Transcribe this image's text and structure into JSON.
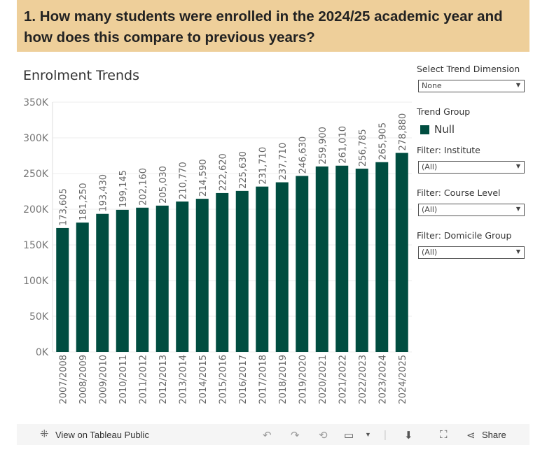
{
  "question": "1. How many students were enrolled in the 2024/25 academic year and how does this compare to previous years?",
  "controls": {
    "trend_dimension_label": "Select Trend Dimension",
    "trend_dimension_value": "None",
    "trend_group_label": "Trend Group",
    "legend_item": "Null",
    "institute_label": "Filter: Institute",
    "institute_value": "(All)",
    "course_level_label": "Filter: Course Level",
    "course_level_value": "(All)",
    "domicile_label": "Filter: Domicile Group",
    "domicile_value": "(All)"
  },
  "toolbar": {
    "view_label": "View on Tableau Public",
    "share_label": "Share"
  },
  "colors": {
    "bar": "#004d40",
    "banner": "#eecf9a"
  },
  "chart_data": {
    "type": "bar",
    "title": "Enrolment Trends",
    "xlabel": "",
    "ylabel": "",
    "ylim": [
      0,
      350000
    ],
    "yticks": [
      0,
      50000,
      100000,
      150000,
      200000,
      250000,
      300000,
      350000
    ],
    "ytick_labels": [
      "0K",
      "50K",
      "100K",
      "150K",
      "200K",
      "250K",
      "300K",
      "350K"
    ],
    "categories": [
      "2007/2008",
      "2008/2009",
      "2009/2010",
      "2010/2011",
      "2011/2012",
      "2012/2013",
      "2013/2014",
      "2014/2015",
      "2015/2016",
      "2016/2017",
      "2017/2018",
      "2018/2019",
      "2019/2020",
      "2020/2021",
      "2021/2022",
      "2022/2023",
      "2023/2024",
      "2024/2025"
    ],
    "values": [
      173605,
      181250,
      193430,
      199145,
      202160,
      205030,
      210770,
      214590,
      222620,
      225630,
      231710,
      237710,
      246630,
      259900,
      261010,
      256785,
      265905,
      278880
    ],
    "data_labels": [
      "173,605",
      "181,250",
      "193,430",
      "199,145",
      "202,160",
      "205,030",
      "210,770",
      "214,590",
      "222,620",
      "225,630",
      "231,710",
      "237,710",
      "246,630",
      "259,900",
      "261,010",
      "256,785",
      "265,905",
      "278,880"
    ]
  }
}
